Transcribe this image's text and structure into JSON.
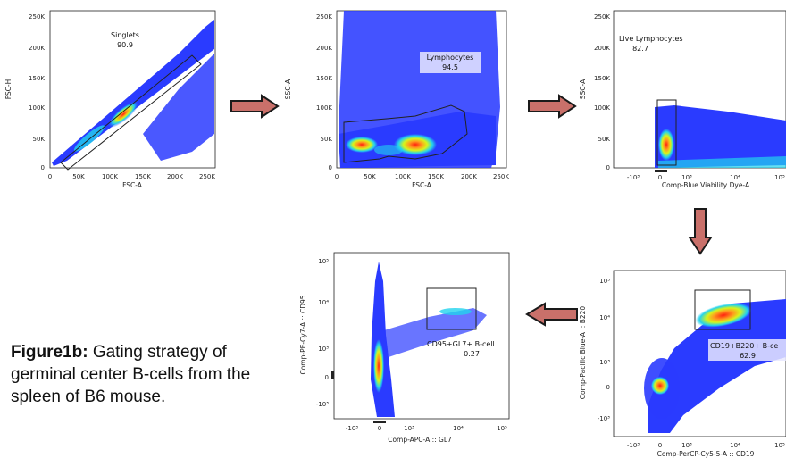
{
  "colors": {
    "low_density": "#2a3bff",
    "mid_density": "#22d3ee",
    "high_density_1": "#d8f51a",
    "high_density_2": "#ff9a1e",
    "peak": "#ff2010",
    "arrow_fill": "#c9706a",
    "arrow_stroke": "#1a1a1a",
    "gate_stroke": "#222222"
  },
  "panels": {
    "singlets": {
      "x_label": "FSC-A",
      "y_label": "FSC-H",
      "x_ticks": [
        "0",
        "50K",
        "100K",
        "150K",
        "200K",
        "250K"
      ],
      "y_ticks": [
        "0",
        "50K",
        "100K",
        "150K",
        "200K",
        "250K"
      ],
      "gate_name": "Singlets",
      "gate_value": "90.9"
    },
    "lymphocytes": {
      "x_label": "FSC-A",
      "y_label": "SSC-A",
      "x_ticks": [
        "0",
        "50K",
        "100K",
        "150K",
        "200K",
        "250K"
      ],
      "y_ticks": [
        "0",
        "50K",
        "100K",
        "150K",
        "200K",
        "250K"
      ],
      "gate_name": "Lymphocytes",
      "gate_value": "94.5"
    },
    "live": {
      "x_label": "Comp-Blue Viability Dye-A",
      "y_label": "SSC-A",
      "x_ticks": [
        "-10³",
        "0",
        "10³",
        "10⁴",
        "10⁵"
      ],
      "y_ticks": [
        "0",
        "50K",
        "100K",
        "150K",
        "200K",
        "250K"
      ],
      "gate_name": "Live Lymphocytes",
      "gate_value": "82.7"
    },
    "bcells": {
      "x_label": "Comp-PerCP-Cy5-5-A :: CD19",
      "y_label": "Comp-Pacific Blue-A :: B220",
      "x_ticks": [
        "-10³",
        "0",
        "10³",
        "10⁴",
        "10⁵"
      ],
      "y_ticks": [
        "-10³",
        "0",
        "10³",
        "10⁴",
        "10⁵"
      ],
      "gate_name": "CD19+B220+ B-ce",
      "gate_value": "62.9"
    },
    "gc": {
      "x_label": "Comp-APC-A :: GL7",
      "y_label": "Comp-PE-Cy7-A :: CD95",
      "x_ticks": [
        "-10³",
        "0",
        "10³",
        "10⁴",
        "10⁵"
      ],
      "y_ticks": [
        "-10³",
        "0",
        "10³",
        "10⁴",
        "10⁵"
      ],
      "gate_name": "CD95+GL7+ B-cell",
      "gate_value": "0.27"
    }
  },
  "caption": {
    "bold": "Figure1b:",
    "text": " Gating strategy of germinal center B-cells from the spleen of B6 mouse."
  }
}
